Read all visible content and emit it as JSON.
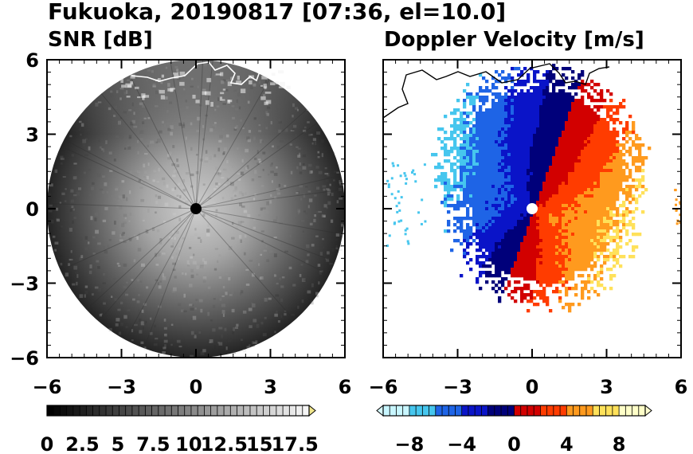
{
  "figure_title": "Fukuoka, 20190817 [07:36, el=10.0]",
  "chart_data": [
    {
      "type": "heatmap",
      "title": "SNR [dB]",
      "xlim": [
        -6,
        6
      ],
      "ylim": [
        -6,
        6
      ],
      "x_ticks": [
        "-6",
        "-3",
        "0",
        "3",
        "6"
      ],
      "y_ticks": [
        "6",
        "3",
        "0",
        "-3",
        "-6"
      ],
      "radar_center": [
        0,
        0
      ],
      "range_radius": 6,
      "colorbar": {
        "min": 0,
        "max": 18.5,
        "extend": "max",
        "tick_values": [
          0,
          2.5,
          5,
          7.5,
          10,
          12.5,
          15,
          17.5
        ],
        "tick_labels": [
          "0",
          "2.5",
          "5",
          "7.5",
          "10",
          "12.5",
          "15",
          "17.5"
        ],
        "colors": [
          "#000000",
          "#ffffff"
        ],
        "extend_color": "#f0e68c"
      },
      "center_marker_color": "#000000"
    },
    {
      "type": "heatmap",
      "title": "Doppler Velocity [m/s]",
      "xlim": [
        -6,
        6
      ],
      "ylim": [
        -6,
        6
      ],
      "x_ticks": [
        "-6",
        "-3",
        "0",
        "3",
        "6"
      ],
      "radar_center": [
        0,
        0
      ],
      "colorbar": {
        "min": -10,
        "max": 10,
        "extend": "both",
        "tick_values": [
          -8,
          -4,
          0,
          4,
          8
        ],
        "tick_labels": [
          "−8",
          "−4",
          "0",
          "4",
          "8"
        ],
        "colors": [
          "#c8f6ff",
          "#46c6ee",
          "#1e64e6",
          "#0a14c8",
          "#00007a",
          "#d20000",
          "#ff3c00",
          "#ff9a1e",
          "#ffe15a",
          "#ffffc8"
        ],
        "extend_low_color": "#d8fbff",
        "extend_high_color": "#ffffd0"
      },
      "center_marker_color": "#ffffff"
    }
  ]
}
